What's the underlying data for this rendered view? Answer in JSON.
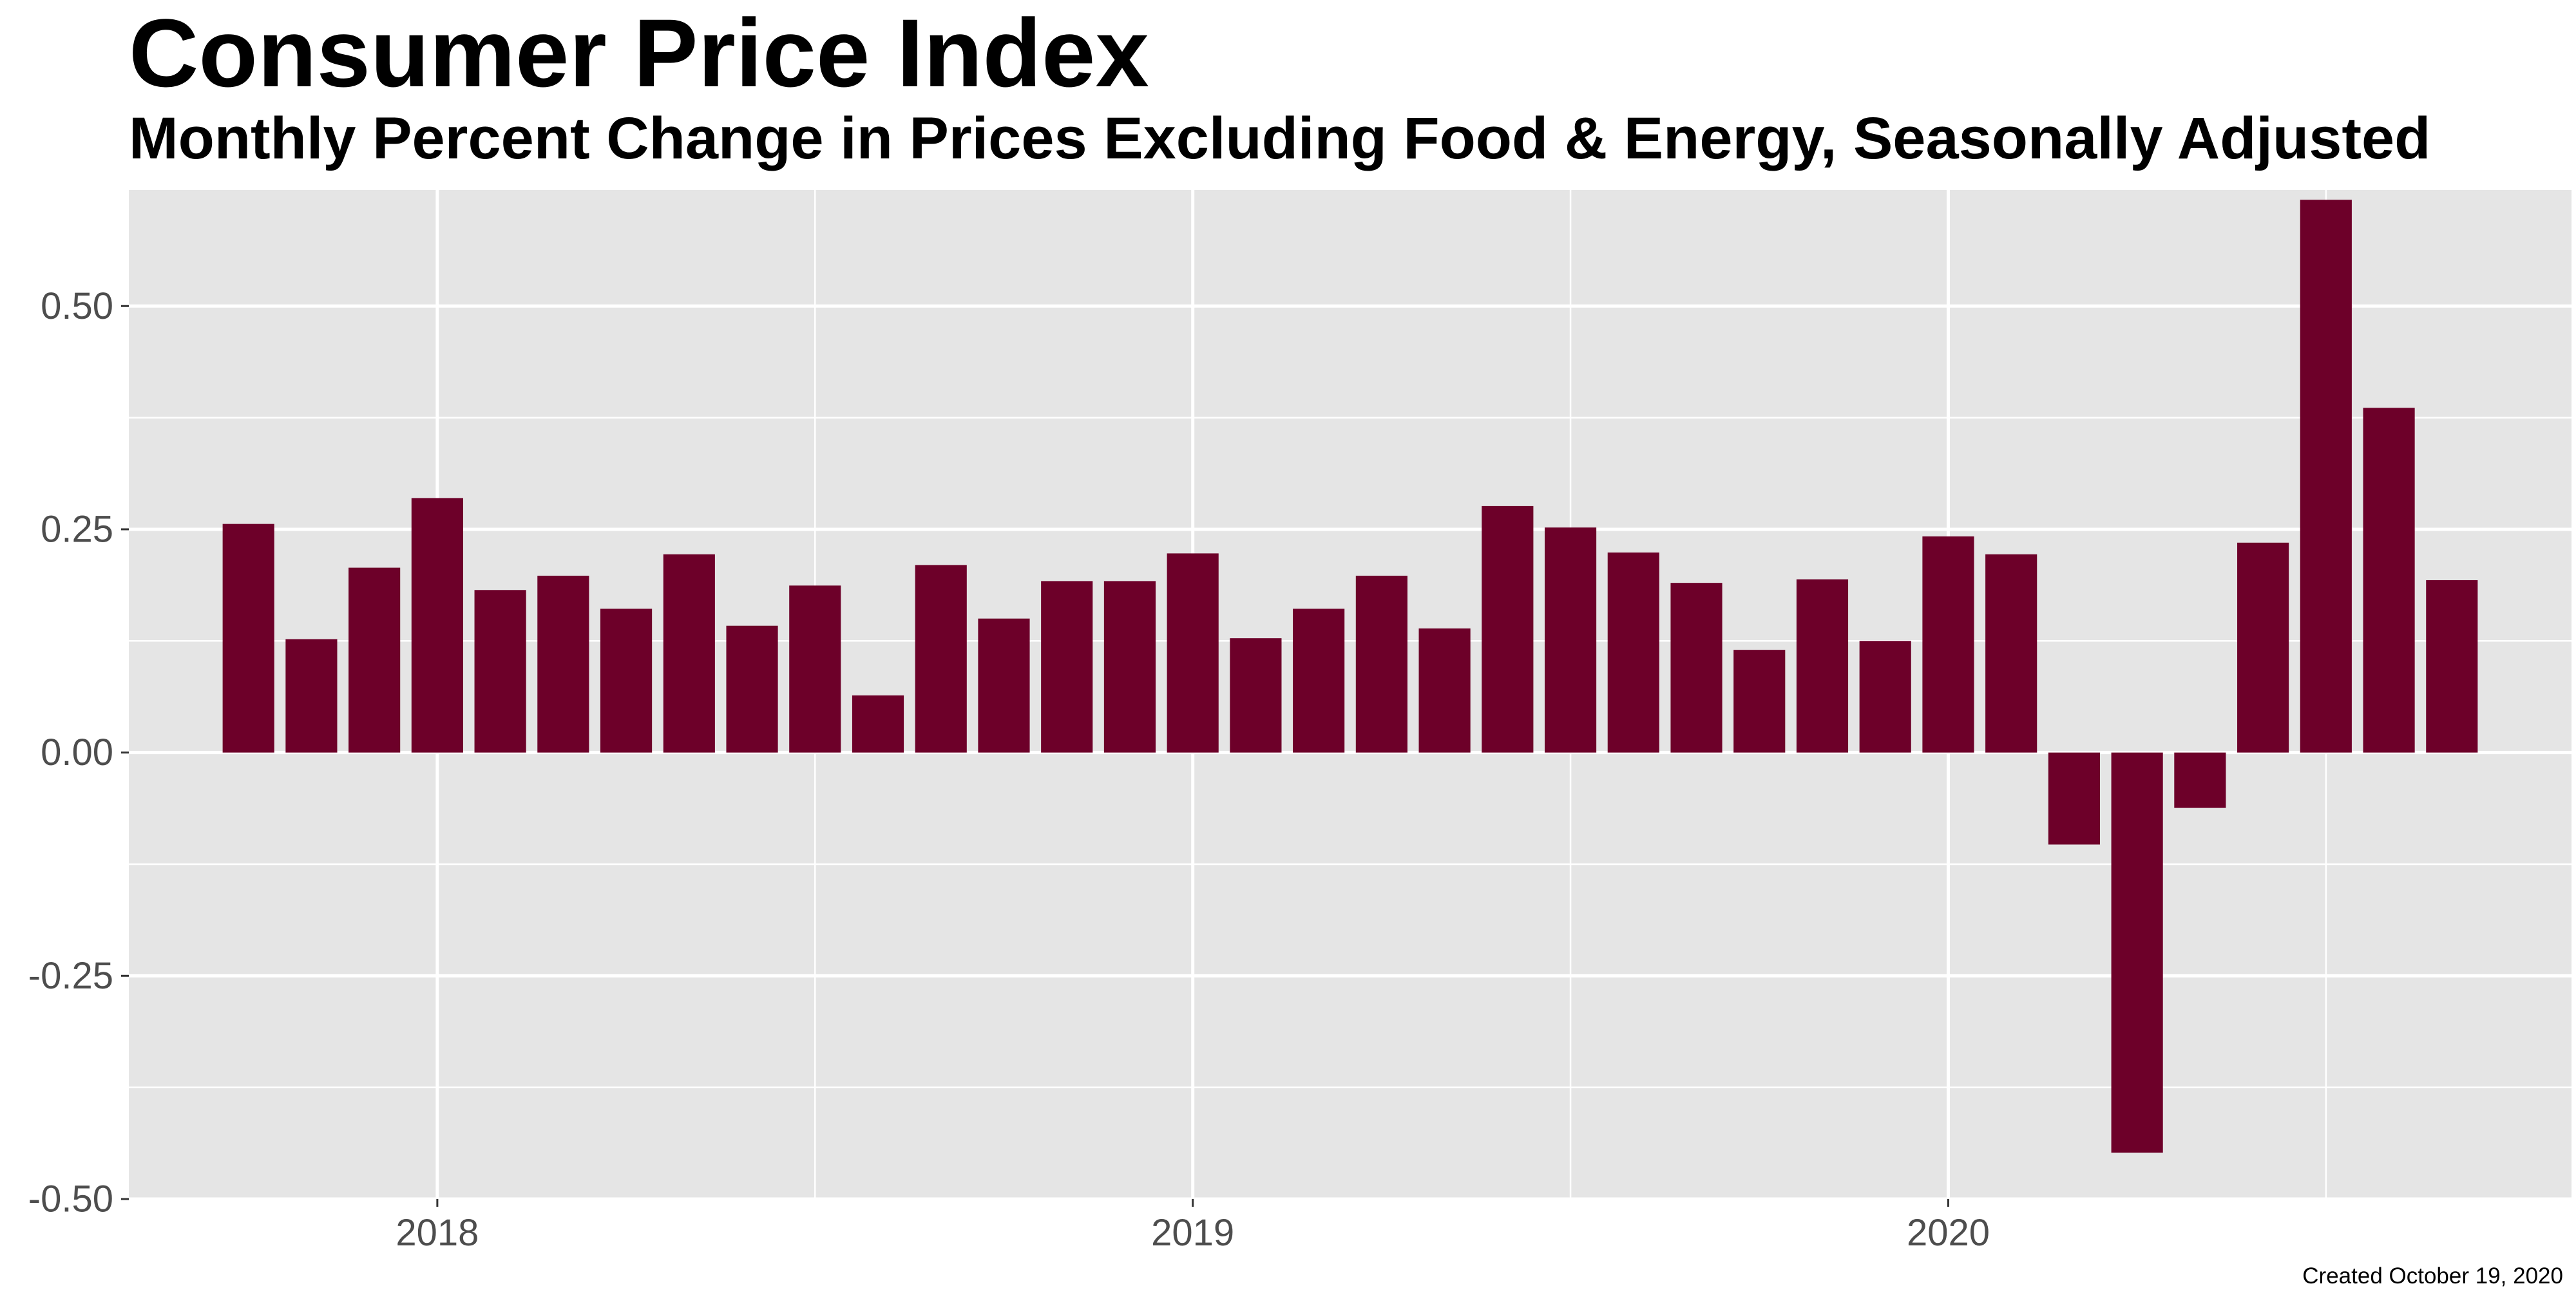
{
  "title": "Consumer Price Index",
  "subtitle": "Monthly Percent Change in Prices Excluding Food & Energy, Seasonally Adjusted",
  "caption": "Created October 19, 2020",
  "colors": {
    "bar": "#6d0029",
    "panel": "#e5e5e5",
    "grid": "#ffffff",
    "tick_text": "#4d4d4d"
  },
  "chart_data": {
    "type": "bar",
    "categories": [
      "2017-10",
      "2017-11",
      "2017-12",
      "2018-01",
      "2018-02",
      "2018-03",
      "2018-04",
      "2018-05",
      "2018-06",
      "2018-07",
      "2018-08",
      "2018-09",
      "2018-10",
      "2018-11",
      "2018-12",
      "2019-01",
      "2019-02",
      "2019-03",
      "2019-04",
      "2019-05",
      "2019-06",
      "2019-07",
      "2019-08",
      "2019-09",
      "2019-10",
      "2019-11",
      "2019-12",
      "2020-01",
      "2020-02",
      "2020-03",
      "2020-04",
      "2020-05",
      "2020-06",
      "2020-07",
      "2020-08",
      "2020-09"
    ],
    "values": [
      0.256,
      0.127,
      0.207,
      0.285,
      0.182,
      0.198,
      0.161,
      0.222,
      0.142,
      0.187,
      0.064,
      0.21,
      0.15,
      0.192,
      0.192,
      0.223,
      0.128,
      0.161,
      0.198,
      0.139,
      0.276,
      0.252,
      0.224,
      0.19,
      0.115,
      0.194,
      0.125,
      0.242,
      0.222,
      -0.103,
      -0.448,
      -0.062,
      0.235,
      0.619,
      0.386,
      0.193
    ],
    "xlabel": "",
    "ylabel": "",
    "ylim": [
      -0.5,
      0.63
    ],
    "yticks": [
      -0.5,
      -0.25,
      0,
      0.25,
      0.5
    ],
    "ytick_labels": [
      "-0.50",
      "-0.25",
      "0.00",
      "0.25",
      "0.50"
    ],
    "xtick_dates": [
      "2018-01-01",
      "2019-01-01",
      "2020-01-01"
    ],
    "xtick_labels": [
      "2018",
      "2019",
      "2020"
    ],
    "grid": true,
    "legend": "none"
  }
}
